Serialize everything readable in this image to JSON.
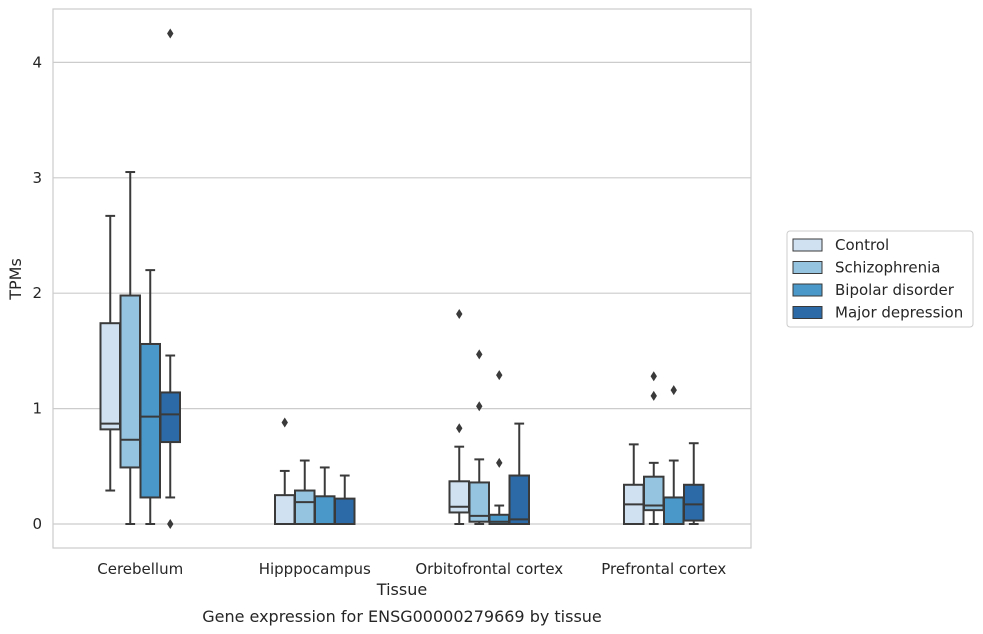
{
  "chart_data": {
    "type": "box",
    "xlabel": "Tissue",
    "ylabel": "TPMs",
    "caption": "Gene expression for ENSG00000279669 by tissue",
    "ylim": [
      -0.2,
      4.45
    ],
    "yticks": [
      0,
      1,
      2,
      3,
      4
    ],
    "grid": "horizontal",
    "legend_position": "right",
    "categories": [
      "Cerebellum",
      "Hipppocampus",
      "Orbitofrontal cortex",
      "Prefrontal cortex"
    ],
    "series": [
      {
        "name": "Control",
        "color": "#d0e1f2",
        "boxes": [
          {
            "whisker_low": 0.29,
            "q1": 0.82,
            "median": 0.87,
            "q3": 1.74,
            "whisker_high": 2.67,
            "outliers": []
          },
          {
            "whisker_low": 0.0,
            "q1": 0.0,
            "median": 0.0,
            "q3": 0.25,
            "whisker_high": 0.46,
            "outliers": [
              0.88
            ]
          },
          {
            "whisker_low": 0.0,
            "q1": 0.1,
            "median": 0.15,
            "q3": 0.37,
            "whisker_high": 0.67,
            "outliers": [
              0.83,
              1.82
            ]
          },
          {
            "whisker_low": 0.0,
            "q1": 0.0,
            "median": 0.17,
            "q3": 0.34,
            "whisker_high": 0.69,
            "outliers": []
          }
        ]
      },
      {
        "name": "Schizophrenia",
        "color": "#94c4df",
        "boxes": [
          {
            "whisker_low": 0.0,
            "q1": 0.49,
            "median": 0.73,
            "q3": 1.98,
            "whisker_high": 3.05,
            "outliers": []
          },
          {
            "whisker_low": 0.0,
            "q1": 0.0,
            "median": 0.19,
            "q3": 0.29,
            "whisker_high": 0.55,
            "outliers": []
          },
          {
            "whisker_low": 0.0,
            "q1": 0.02,
            "median": 0.07,
            "q3": 0.36,
            "whisker_high": 0.56,
            "outliers": [
              1.02,
              1.47
            ]
          },
          {
            "whisker_low": 0.0,
            "q1": 0.12,
            "median": 0.16,
            "q3": 0.41,
            "whisker_high": 0.53,
            "outliers": [
              1.11,
              1.28
            ]
          }
        ]
      },
      {
        "name": "Bipolar disorder",
        "color": "#4a98c9",
        "boxes": [
          {
            "whisker_low": 0.0,
            "q1": 0.23,
            "median": 0.93,
            "q3": 1.56,
            "whisker_high": 2.2,
            "outliers": []
          },
          {
            "whisker_low": 0.0,
            "q1": 0.0,
            "median": 0.0,
            "q3": 0.24,
            "whisker_high": 0.49,
            "outliers": []
          },
          {
            "whisker_low": 0.0,
            "q1": 0.0,
            "median": 0.02,
            "q3": 0.08,
            "whisker_high": 0.16,
            "outliers": [
              0.53,
              1.29
            ]
          },
          {
            "whisker_low": 0.0,
            "q1": 0.0,
            "median": 0.0,
            "q3": 0.23,
            "whisker_high": 0.55,
            "outliers": [
              1.16
            ]
          }
        ]
      },
      {
        "name": "Major depression",
        "color": "#2b6aa7",
        "boxes": [
          {
            "whisker_low": 0.23,
            "q1": 0.71,
            "median": 0.95,
            "q3": 1.14,
            "whisker_high": 1.46,
            "outliers": [
              0.0,
              4.25
            ]
          },
          {
            "whisker_low": 0.0,
            "q1": 0.0,
            "median": 0.0,
            "q3": 0.22,
            "whisker_high": 0.42,
            "outliers": []
          },
          {
            "whisker_low": 0.0,
            "q1": 0.0,
            "median": 0.04,
            "q3": 0.42,
            "whisker_high": 0.87,
            "outliers": []
          },
          {
            "whisker_low": 0.0,
            "q1": 0.03,
            "median": 0.17,
            "q3": 0.34,
            "whisker_high": 0.7,
            "outliers": []
          }
        ]
      }
    ]
  }
}
